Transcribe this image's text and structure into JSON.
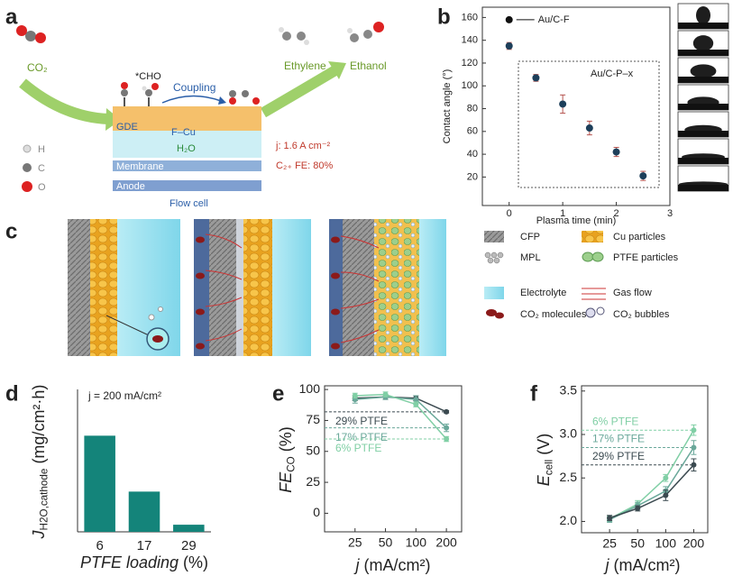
{
  "panel_labels": [
    "a",
    "b",
    "c",
    "d",
    "e",
    "f"
  ],
  "diagram_a": {
    "co2": "CO₂",
    "ethylene": "Ethylene",
    "ethanol": "Ethanol",
    "cho": "*CHO",
    "coupling": "Coupling",
    "gde": "GDE",
    "fcu": "F–Cu",
    "h2o": "H₂O",
    "membrane": "Membrane",
    "anode": "Anode",
    "flow_cell": "Flow cell",
    "legend": [
      "H",
      "C",
      "O"
    ],
    "current": "j: 1.6 A cm⁻²",
    "fe": "C₂₊ FE: 80%"
  },
  "diagram_c": {
    "legend": [
      "CFP",
      "Cu particles",
      "MPL",
      "PTFE particles",
      "Electrolyte",
      "Gas flow",
      "CO₂ molecules",
      "CO₂ bubbles"
    ]
  },
  "chart_data": [
    {
      "type": "scatter",
      "x_label": "Plasma time (min)",
      "y_label": "Contact angle (°)",
      "xlim": [
        -0.5,
        3
      ],
      "ylim": [
        -5,
        169
      ],
      "xticks": [
        0,
        1,
        2,
        3
      ],
      "yticks": [
        20,
        40,
        60,
        80,
        100,
        120,
        140,
        160
      ],
      "error_color": "#b5544f",
      "series": [
        {
          "name": "Au/C-F",
          "color": "#111111",
          "x": [
            0
          ],
          "values": [
            158
          ]
        },
        {
          "name": "Au/C-P–x",
          "color": "#1d3f5a",
          "x": [
            0,
            0.5,
            1,
            1.5,
            2,
            2.5
          ],
          "values": [
            135,
            107,
            84,
            63,
            42,
            21
          ],
          "errors": [
            3,
            3,
            8,
            6,
            4,
            4
          ]
        }
      ]
    },
    {
      "type": "bar",
      "annotation": "j = 200 mA/cm²",
      "x_label": {
        "text": "PTFE loading",
        "suffix": " (%)"
      },
      "y_label": {
        "text": "J",
        "sub": "H2O,cathode",
        "suffix": " (mg/cm²·h)"
      },
      "categories": [
        "6",
        "17",
        "29"
      ],
      "values": [
        27,
        11.3,
        2
      ],
      "color": "#14847a",
      "ylim": [
        0,
        40
      ]
    },
    {
      "type": "line",
      "x_label": {
        "text": "j",
        "suffix": " (mA/cm²)"
      },
      "y_label": {
        "text": "FE",
        "sub": "CO",
        "suffix": " (%)"
      },
      "categories": [
        "25",
        "50",
        "100",
        "200"
      ],
      "ylim": [
        -15,
        103
      ],
      "yticks": [
        0,
        25,
        50,
        75,
        100
      ],
      "series": [
        {
          "name": "29% PTFE",
          "color": "#3b4a50",
          "values": [
            93,
            94,
            93,
            82
          ],
          "errors": [
            2,
            2,
            2,
            1
          ]
        },
        {
          "name": "17% PTFE",
          "color": "#6aa89a",
          "values": [
            92,
            94,
            92,
            69
          ],
          "errors": [
            3,
            2,
            3,
            3
          ]
        },
        {
          "name": "6% PTFE",
          "color": "#80cfa5",
          "values": [
            95,
            96,
            88,
            60
          ],
          "errors": [
            2,
            2,
            2,
            2
          ]
        }
      ]
    },
    {
      "type": "line",
      "x_label": {
        "text": "j",
        "suffix": " (mA/cm²)"
      },
      "y_label": {
        "text": "E",
        "sub": "cell",
        "suffix": " (V)"
      },
      "categories": [
        "25",
        "50",
        "100",
        "200"
      ],
      "ylim": [
        1.87,
        3.56
      ],
      "yticks": [
        {
          "value": 2,
          "label": "2.0"
        },
        2.5,
        {
          "value": 3,
          "label": "3.0"
        },
        3.5
      ],
      "series": [
        {
          "name": "6% PTFE",
          "color": "#80cfa5",
          "values": [
            2.03,
            2.2,
            2.5,
            3.05
          ],
          "errors": [
            0.03,
            0.04,
            0.04,
            0.06
          ]
        },
        {
          "name": "17% PTFE",
          "color": "#6aa89a",
          "values": [
            2.02,
            2.18,
            2.35,
            2.85
          ],
          "errors": [
            0.03,
            0.04,
            0.05,
            0.08
          ]
        },
        {
          "name": "29% PTFE",
          "color": "#3b4a50",
          "values": [
            2.04,
            2.15,
            2.3,
            2.65
          ],
          "errors": [
            0.03,
            0.03,
            0.06,
            0.07
          ]
        }
      ]
    }
  ]
}
